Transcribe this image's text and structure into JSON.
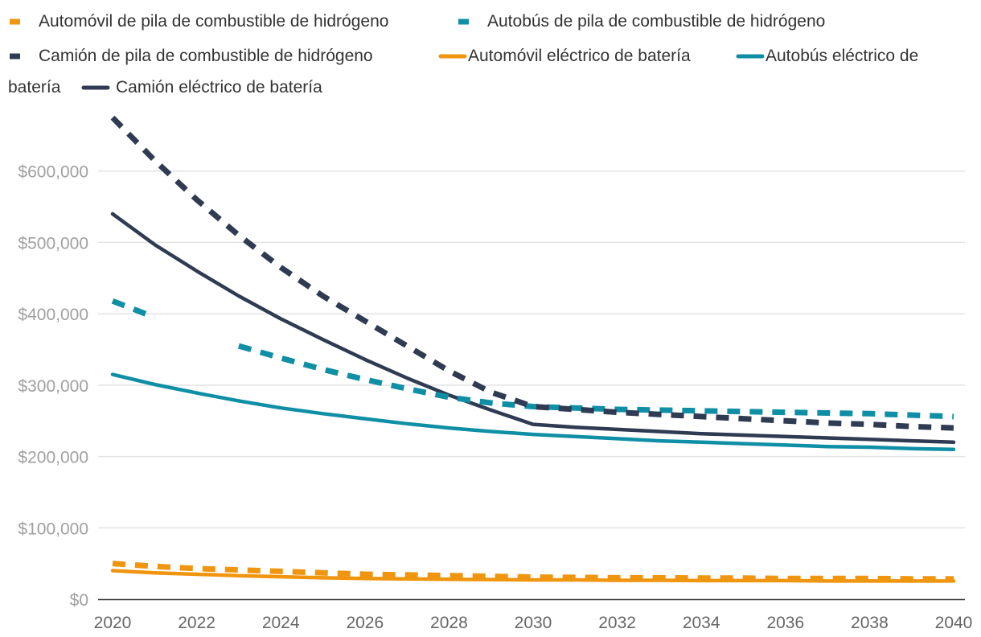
{
  "chart_data": {
    "type": "line",
    "title": "",
    "xlabel": "",
    "ylabel": "",
    "x": [
      2020,
      2021,
      2022,
      2023,
      2024,
      2025,
      2026,
      2027,
      2028,
      2029,
      2030,
      2031,
      2032,
      2033,
      2034,
      2035,
      2036,
      2037,
      2038,
      2039,
      2040
    ],
    "xticks": [
      "2020",
      "2022",
      "2024",
      "2026",
      "2028",
      "2030",
      "2032",
      "2034",
      "2036",
      "2038",
      "2040"
    ],
    "xlim": [
      2020,
      2040
    ],
    "ylim": [
      0,
      700000
    ],
    "yticks": [
      "$0",
      "$100,000",
      "$200,000",
      "$300,000",
      "$400,000",
      "$500,000",
      "$600,000"
    ],
    "ytick_values": [
      0,
      100000,
      200000,
      300000,
      400000,
      500000,
      600000
    ],
    "grid": true,
    "legend_position": "top",
    "series": [
      {
        "name": "Automóvil de pila de combustible de hidrógeno",
        "color": "#f0950e",
        "style": "dashed",
        "values": [
          50000,
          46000,
          43000,
          41000,
          39000,
          37000,
          35000,
          34000,
          33000,
          32000,
          31000,
          30500,
          30000,
          30000,
          29500,
          29500,
          29000,
          29000,
          29000,
          28500,
          28500
        ]
      },
      {
        "name": "Autobús de pila de combustible de hidrógeno",
        "color": "#0f8fa5",
        "style": "dashed",
        "values": [
          418000,
          395000,
          null,
          355000,
          338000,
          322000,
          308000,
          295000,
          283000,
          275000,
          270000,
          268000,
          266000,
          265000,
          264000,
          263000,
          262000,
          261000,
          260000,
          258000,
          256000
        ]
      },
      {
        "name": "Camión de pila de combustible de hidrógeno",
        "color": "#2e3b52",
        "style": "dashed",
        "values": [
          675000,
          615000,
          560000,
          510000,
          465000,
          425000,
          390000,
          355000,
          320000,
          290000,
          270000,
          266000,
          262000,
          259000,
          256000,
          253000,
          250000,
          247000,
          245000,
          242000,
          240000
        ]
      },
      {
        "name": "Automóvil eléctrico de batería",
        "color": "#f0950e",
        "style": "solid",
        "values": [
          40000,
          37000,
          35000,
          33000,
          31500,
          30000,
          29000,
          28500,
          28000,
          27500,
          27000,
          27000,
          26500,
          26500,
          26000,
          26000,
          26000,
          25500,
          25500,
          25500,
          25500
        ]
      },
      {
        "name": "Autobús eléctrico de batería",
        "color": "#0f8fa5",
        "style": "solid",
        "values": [
          315000,
          301000,
          289000,
          278000,
          268000,
          260000,
          253000,
          246000,
          240000,
          235000,
          231000,
          228000,
          225000,
          222000,
          220000,
          218000,
          216000,
          214000,
          213000,
          211000,
          210000
        ]
      },
      {
        "name": "Camión eléctrico de batería",
        "color": "#2e3b52",
        "style": "solid",
        "values": [
          540000,
          497000,
          460000,
          425000,
          393000,
          364000,
          336000,
          310000,
          286000,
          265000,
          245000,
          241000,
          238000,
          235000,
          232000,
          230000,
          228000,
          226000,
          224000,
          222000,
          220000
        ]
      }
    ]
  }
}
